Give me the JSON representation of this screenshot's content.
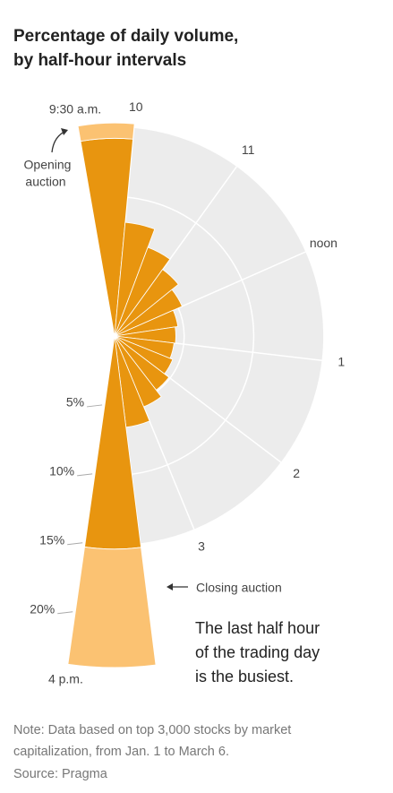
{
  "chart_data": {
    "type": "polar-bar",
    "title": [
      "Percentage of daily volume,",
      "by half-hour intervals"
    ],
    "values": [
      14.2,
      8.2,
      6.8,
      5.9,
      5.3,
      4.6,
      4.4,
      4.3,
      4.5,
      4.9,
      5.5,
      6.6,
      15.3
    ],
    "auction_values": [
      1.1,
      null,
      null,
      null,
      null,
      null,
      null,
      null,
      null,
      null,
      null,
      null,
      8.5
    ],
    "color": "#e8950f",
    "auction_color": "#fbc272",
    "ylim": [
      0,
      24
    ],
    "yticks": [
      {
        "value": 5,
        "label": "5%"
      },
      {
        "value": 10,
        "label": "10%"
      },
      {
        "value": 15,
        "label": "15%"
      },
      {
        "value": 20,
        "label": "20%"
      }
    ],
    "xticks": [
      {
        "value": 0,
        "label": "9:30 a.m."
      },
      {
        "value": 1,
        "label": "10"
      },
      {
        "value": 3,
        "label": "11"
      },
      {
        "value": 5,
        "label": "noon"
      },
      {
        "value": 7,
        "label": "1"
      },
      {
        "value": 9,
        "label": "2"
      },
      {
        "value": 11,
        "label": "3"
      },
      {
        "value": 13,
        "label": "4 p.m."
      }
    ],
    "annotations": {
      "opening": [
        "Opening",
        "auction"
      ],
      "closing": "Closing auction",
      "callout": [
        "The last half hour",
        "of the trading day",
        "is the busiest."
      ]
    },
    "note": [
      "Note: Data based on top 3,000 stocks by market",
      "capitalization, from Jan. 1 to March 6."
    ],
    "source": "Source: Pragma"
  }
}
